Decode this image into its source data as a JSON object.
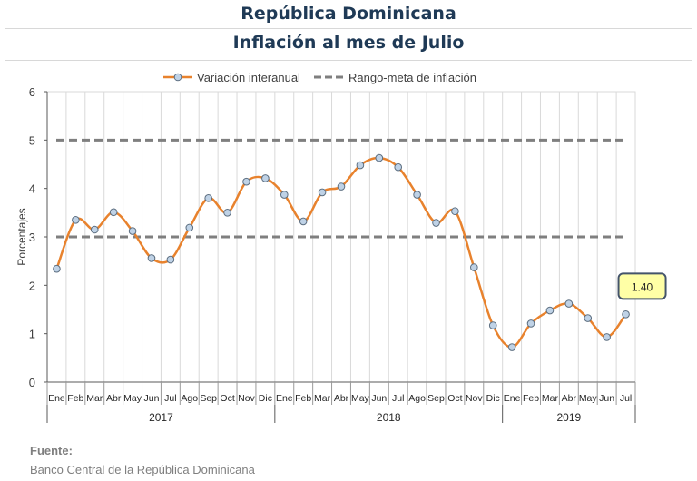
{
  "header": {
    "title": "República Dominicana",
    "subtitle": "Inflación al mes de Julio"
  },
  "source": {
    "label": "Fuente:",
    "text": "Banco Central de la República Dominicana"
  },
  "colors": {
    "series": "#E8822D",
    "marker_fill": "#BFD2E6",
    "marker_stroke": "#5C6E80",
    "target": "#7F7F7F",
    "grid": "#D9D9D9",
    "callout_fill": "#FFFFA6",
    "callout_stroke": "#44546A"
  },
  "chart_data": {
    "type": "line",
    "title": "",
    "xlabel": "",
    "ylabel": "Porcentajes",
    "ylim": [
      0,
      6
    ],
    "yticks": [
      "0",
      "1",
      "2",
      "3",
      "4",
      "5",
      "6"
    ],
    "grid": true,
    "legend_position": "top",
    "categories": [
      "Ene",
      "Feb",
      "Mar",
      "Abr",
      "May",
      "Jun",
      "Jul",
      "Ago",
      "Sep",
      "Oct",
      "Nov",
      "Dic",
      "Ene",
      "Feb",
      "Mar",
      "Abr",
      "May",
      "Jun",
      "Jul",
      "Ago",
      "Sep",
      "Oct",
      "Nov",
      "Dic",
      "Ene",
      "Feb",
      "Mar",
      "Abr",
      "May",
      "Jun",
      "Jul"
    ],
    "years": [
      {
        "label": "2017",
        "count": 12
      },
      {
        "label": "2018",
        "count": 12
      },
      {
        "label": "2019",
        "count": 7
      }
    ],
    "series": [
      {
        "name": "Variación interanual",
        "values": [
          2.34,
          3.35,
          3.15,
          3.51,
          3.12,
          2.56,
          2.53,
          3.19,
          3.8,
          3.5,
          4.14,
          4.21,
          3.87,
          3.32,
          3.92,
          4.04,
          4.48,
          4.63,
          4.44,
          3.87,
          3.29,
          3.53,
          2.37,
          1.17,
          0.72,
          1.21,
          1.48,
          1.62,
          1.32,
          0.93,
          1.4
        ]
      }
    ],
    "target_range": {
      "name": "Rango-meta de inflación",
      "values": [
        3,
        5
      ]
    },
    "callout": "1.40"
  }
}
